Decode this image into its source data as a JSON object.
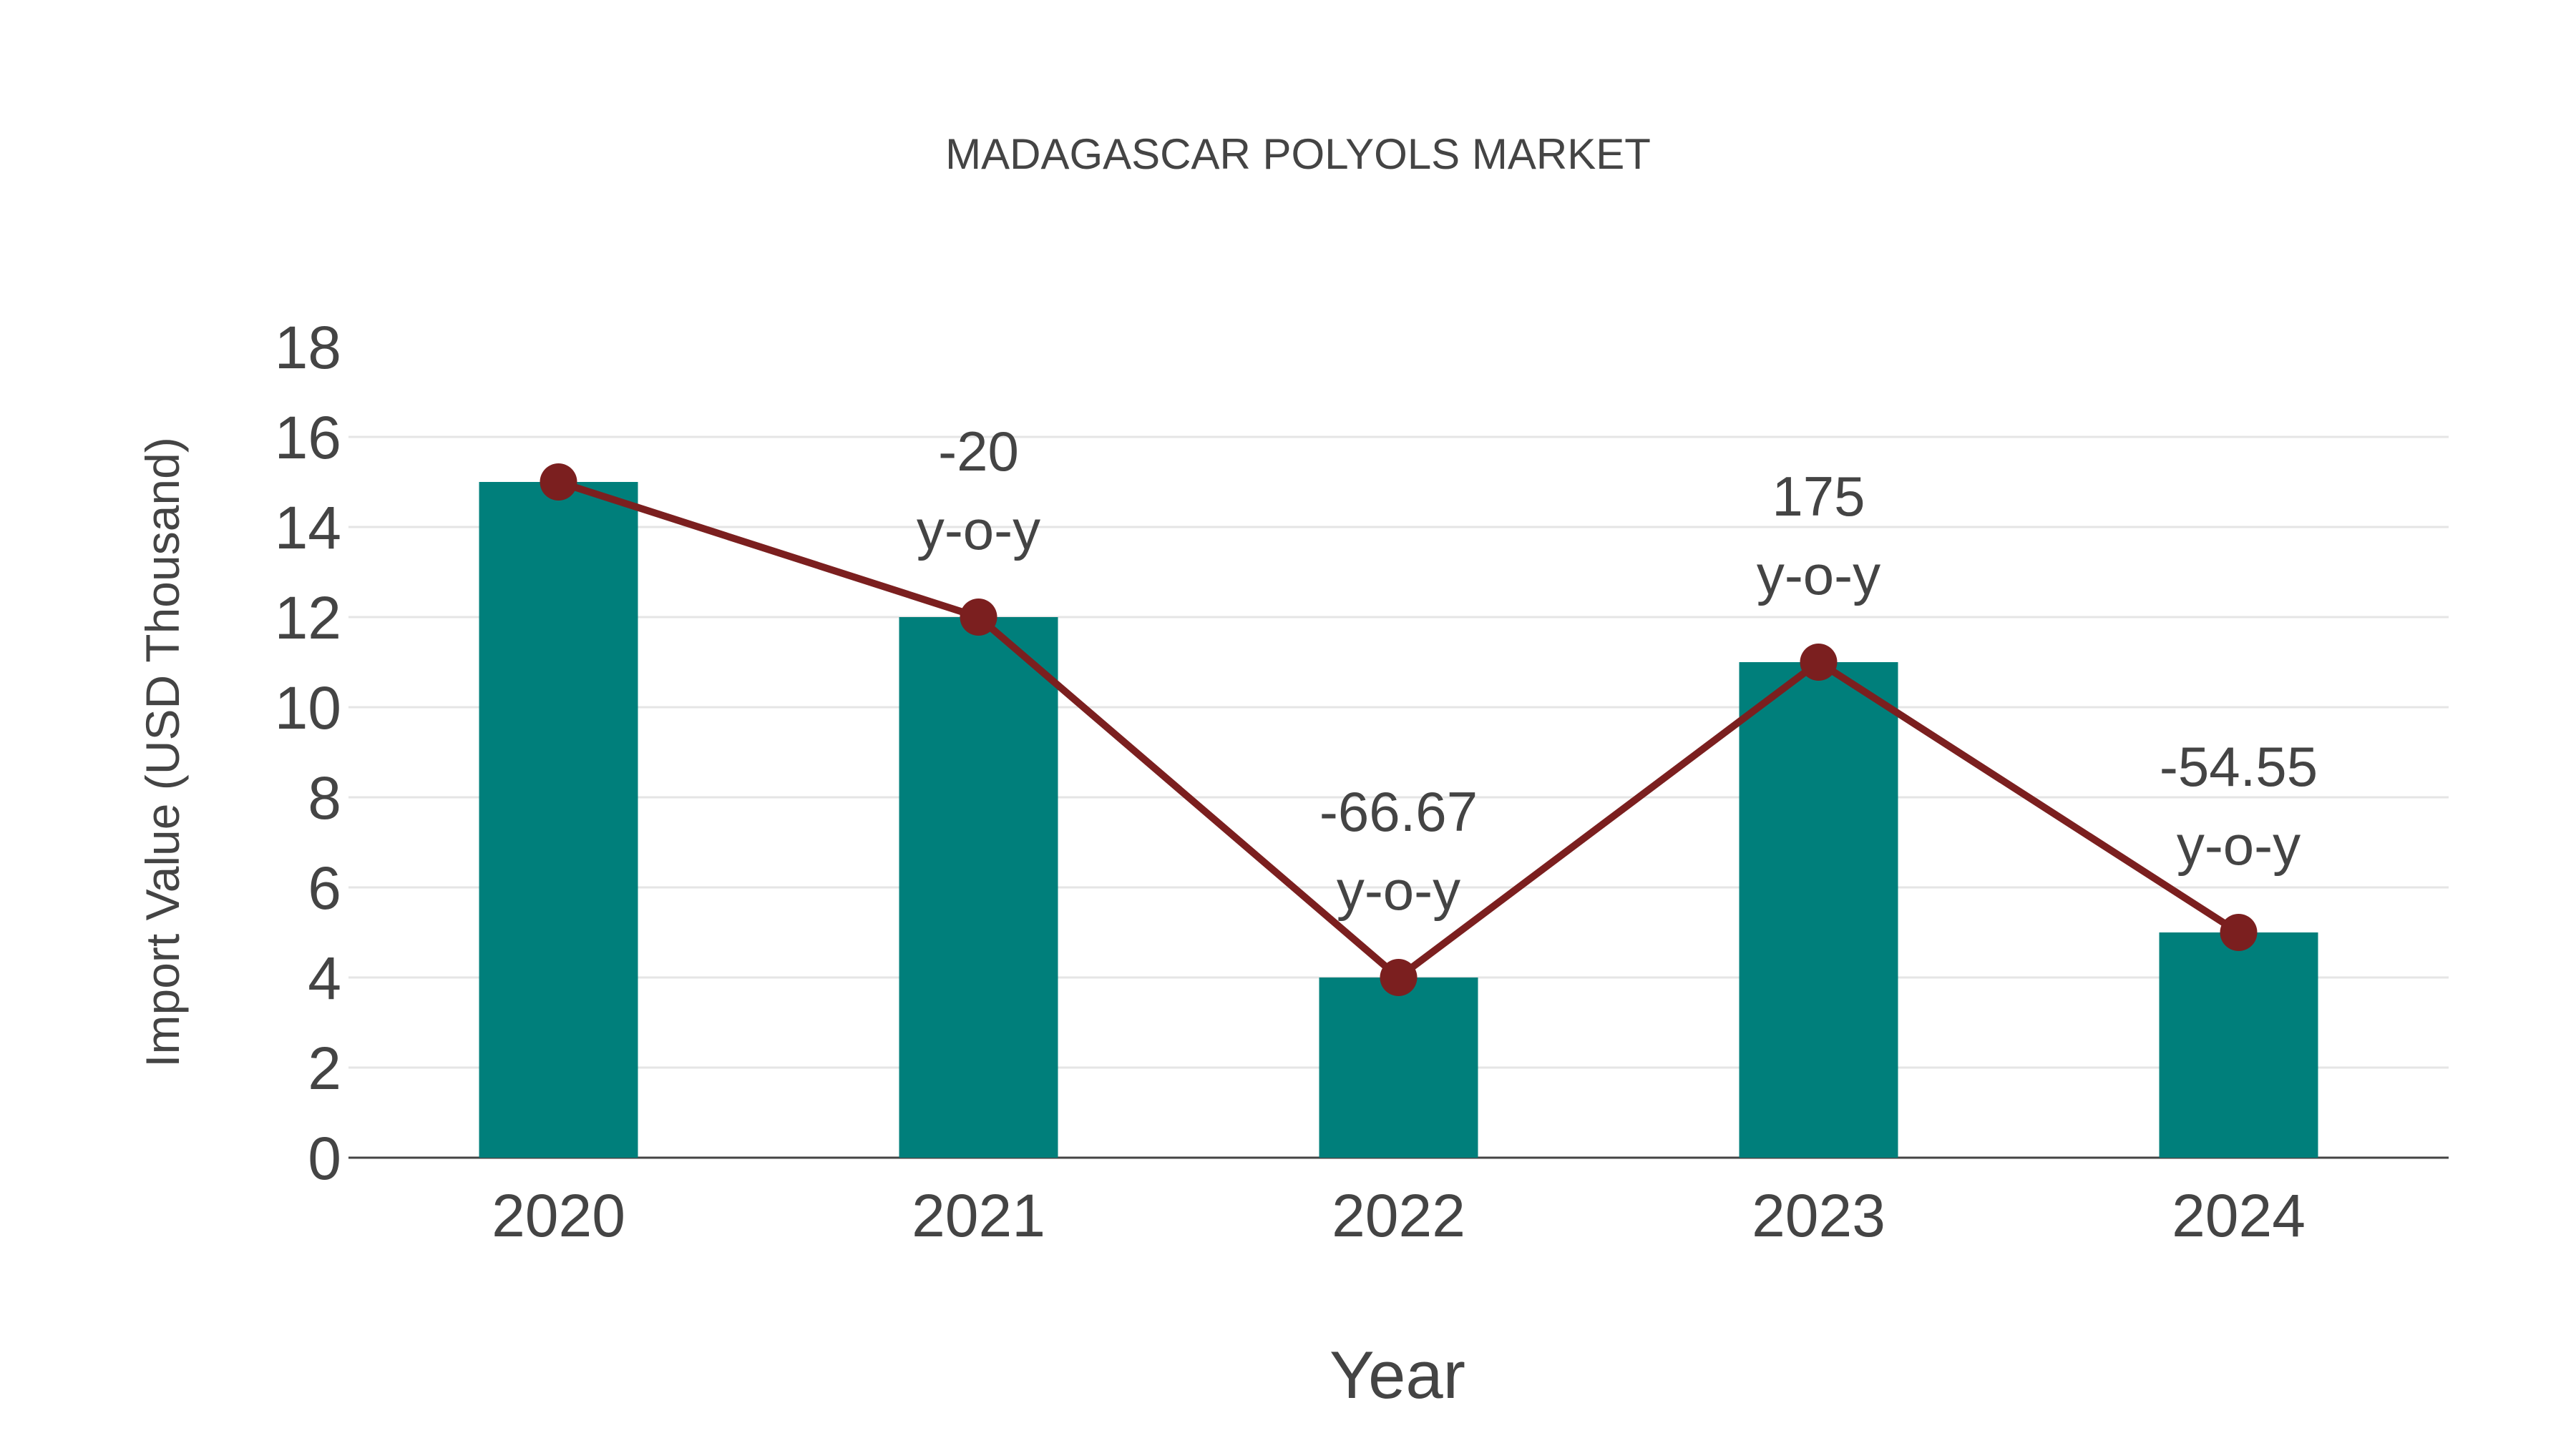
{
  "chart_data": {
    "type": "bar",
    "title": "MADAGASCAR POLYOLS MARKET",
    "xlabel": "Year",
    "ylabel": "Import Value (USD Thousand)",
    "categories": [
      "2020",
      "2021",
      "2022",
      "2023",
      "2024"
    ],
    "values": [
      15,
      12,
      4,
      11,
      5
    ],
    "ylim": [
      0,
      18
    ],
    "yticks": [
      "0",
      "2",
      "4",
      "6",
      "8",
      "10",
      "12",
      "14",
      "16",
      "18"
    ],
    "grid": true,
    "line_series": {
      "name": "trend",
      "values": [
        15,
        12,
        4,
        11,
        5
      ]
    },
    "annotations": [
      {
        "index": 1,
        "value": "-20",
        "suffix": "y-o-y"
      },
      {
        "index": 2,
        "value": "-66.67",
        "suffix": "y-o-y"
      },
      {
        "index": 3,
        "value": "175",
        "suffix": "y-o-y"
      },
      {
        "index": 4,
        "value": "-54.55",
        "suffix": "y-o-y"
      }
    ],
    "colors": {
      "bar": "#007f7b",
      "line": "#7b1f1f",
      "text": "#444444",
      "grid": "#e5e5e5"
    }
  }
}
